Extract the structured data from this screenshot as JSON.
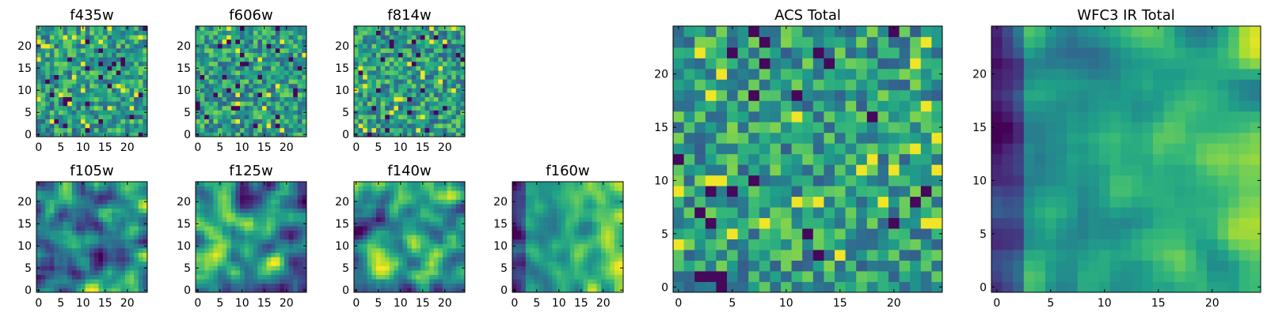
{
  "chart_data": [
    {
      "type": "heatmap",
      "title": "f435w",
      "grid_size": 25,
      "xlim": [
        -0.5,
        24.5
      ],
      "ylim": [
        -0.5,
        24.5
      ],
      "xticks": [
        0,
        5,
        10,
        15,
        20
      ],
      "yticks": [
        0,
        5,
        10,
        15,
        20
      ],
      "colormap": "viridis",
      "pattern": "random",
      "seed": 11
    },
    {
      "type": "heatmap",
      "title": "f606w",
      "grid_size": 25,
      "xlim": [
        -0.5,
        24.5
      ],
      "ylim": [
        -0.5,
        24.5
      ],
      "xticks": [
        0,
        5,
        10,
        15,
        20
      ],
      "yticks": [
        0,
        5,
        10,
        15,
        20
      ],
      "colormap": "viridis",
      "pattern": "random",
      "seed": 23
    },
    {
      "type": "heatmap",
      "title": "f814w",
      "grid_size": 25,
      "xlim": [
        -0.5,
        24.5
      ],
      "ylim": [
        -0.5,
        24.5
      ],
      "xticks": [
        0,
        5,
        10,
        15,
        20
      ],
      "yticks": [
        0,
        5,
        10,
        15,
        20
      ],
      "colormap": "viridis",
      "pattern": "random",
      "seed": 37
    },
    {
      "type": "heatmap",
      "title": "f105w",
      "grid_size": 25,
      "xlim": [
        -0.5,
        24.5
      ],
      "ylim": [
        -0.5,
        24.5
      ],
      "xticks": [
        0,
        5,
        10,
        15,
        20
      ],
      "yticks": [
        0,
        5,
        10,
        15,
        20
      ],
      "colormap": "viridis",
      "pattern": "smooth",
      "seed": 41
    },
    {
      "type": "heatmap",
      "title": "f125w",
      "grid_size": 25,
      "xlim": [
        -0.5,
        24.5
      ],
      "ylim": [
        -0.5,
        24.5
      ],
      "xticks": [
        0,
        5,
        10,
        15,
        20
      ],
      "yticks": [
        0,
        5,
        10,
        15,
        20
      ],
      "colormap": "viridis",
      "pattern": "smooth",
      "seed": 53
    },
    {
      "type": "heatmap",
      "title": "f140w",
      "grid_size": 25,
      "xlim": [
        -0.5,
        24.5
      ],
      "ylim": [
        -0.5,
        24.5
      ],
      "xticks": [
        0,
        5,
        10,
        15,
        20
      ],
      "yticks": [
        0,
        5,
        10,
        15,
        20
      ],
      "colormap": "viridis",
      "pattern": "smooth",
      "seed": 67
    },
    {
      "type": "heatmap",
      "title": "f160w",
      "grid_size": 25,
      "xlim": [
        -0.5,
        24.5
      ],
      "ylim": [
        -0.5,
        24.5
      ],
      "xticks": [
        0,
        5,
        10,
        15,
        20
      ],
      "yticks": [
        0,
        5,
        10,
        15,
        20
      ],
      "colormap": "viridis",
      "pattern": "gradient",
      "seed": 79
    },
    {
      "type": "heatmap",
      "title": "ACS Total",
      "grid_size": 25,
      "xlim": [
        -0.5,
        24.5
      ],
      "ylim": [
        -0.5,
        24.5
      ],
      "xticks": [
        0,
        5,
        10,
        15,
        20
      ],
      "yticks": [
        0,
        5,
        10,
        15,
        20
      ],
      "colormap": "viridis",
      "pattern": "random",
      "seed": 97
    },
    {
      "type": "heatmap",
      "title": "WFC3 IR Total",
      "grid_size": 25,
      "xlim": [
        -0.5,
        24.5
      ],
      "ylim": [
        -0.5,
        24.5
      ],
      "xticks": [
        0,
        5,
        10,
        15,
        20
      ],
      "yticks": [
        0,
        5,
        10,
        15,
        20
      ],
      "colormap": "viridis",
      "pattern": "gradient",
      "seed": 113
    }
  ]
}
